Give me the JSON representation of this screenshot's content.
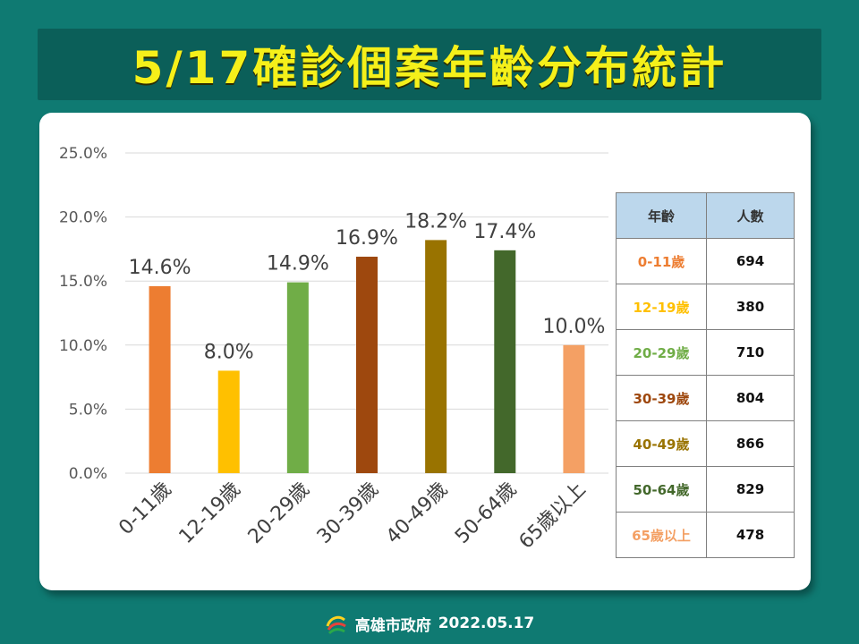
{
  "title": "5/17確診個案年齡分布統計",
  "footer": {
    "org": "高雄市政府",
    "date": "2022.05.17"
  },
  "chart_data": {
    "type": "bar",
    "categories": [
      "0-11歲",
      "12-19歲",
      "20-29歲",
      "30-39歲",
      "40-49歲",
      "50-64歲",
      "65歲以上"
    ],
    "values": [
      14.6,
      8.0,
      14.9,
      16.9,
      18.2,
      17.4,
      10.0
    ],
    "value_labels": [
      "14.6%",
      "8.0%",
      "14.9%",
      "16.9%",
      "18.2%",
      "17.4%",
      "10.0%"
    ],
    "colors": [
      "#ed7d31",
      "#ffc000",
      "#70ad47",
      "#9e480e",
      "#997300",
      "#43682b",
      "#f4a064"
    ],
    "ylim": [
      0,
      25
    ],
    "yticks": [
      "0.0%",
      "5.0%",
      "10.0%",
      "15.0%",
      "20.0%",
      "25.0%"
    ],
    "grid": true,
    "legend": "none"
  },
  "table": {
    "headers": [
      "年齡",
      "人數"
    ],
    "rows": [
      {
        "age": "0-11歲",
        "count": "694",
        "color": "#ed7d31"
      },
      {
        "age": "12-19歲",
        "count": "380",
        "color": "#ffc000"
      },
      {
        "age": "20-29歲",
        "count": "710",
        "color": "#70ad47"
      },
      {
        "age": "30-39歲",
        "count": "804",
        "color": "#9e480e"
      },
      {
        "age": "40-49歲",
        "count": "866",
        "color": "#997300"
      },
      {
        "age": "50-64歲",
        "count": "829",
        "color": "#43682b"
      },
      {
        "age": "65歲以上",
        "count": "478",
        "color": "#f4a064"
      }
    ]
  }
}
